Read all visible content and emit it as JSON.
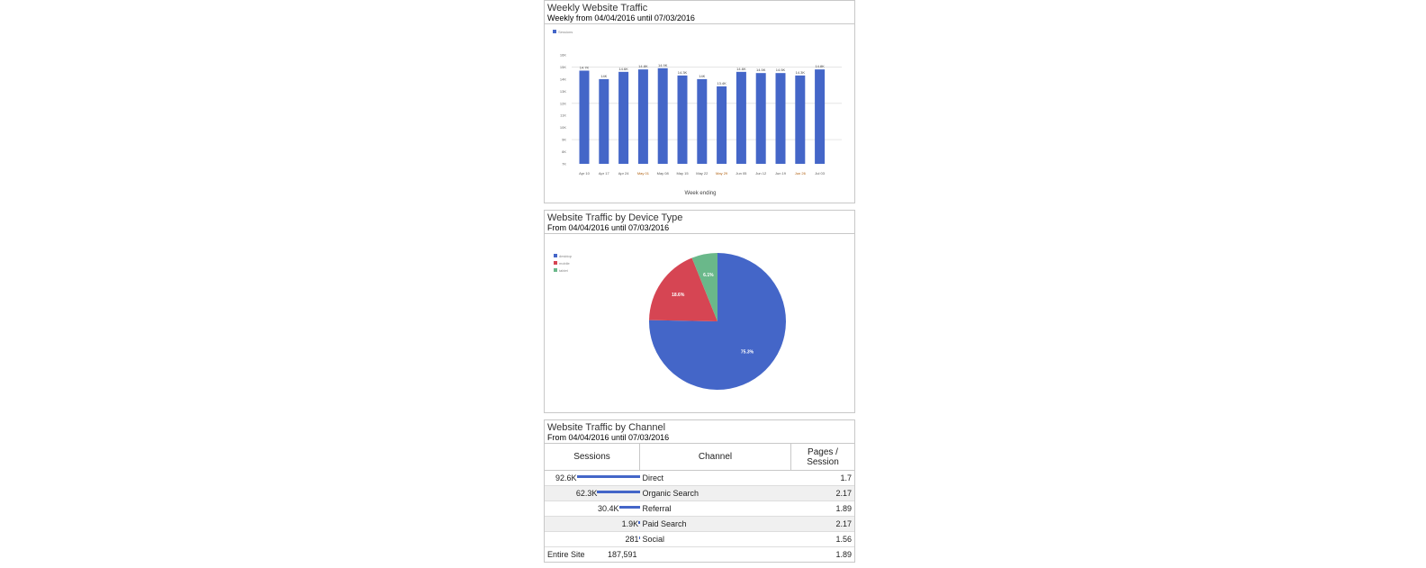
{
  "chart_data": [
    {
      "type": "bar",
      "title": "Weekly Website Traffic",
      "subtitle": "Weekly from 04/04/2016 until 07/03/2016",
      "legend": [
        "Sessions"
      ],
      "legend_position": "top-left",
      "xlabel": "Week ending",
      "ylabel": "",
      "categories": [
        "Apr 10",
        "Apr 17",
        "Apr 24",
        "May 01",
        "May 08",
        "May 15",
        "May 22",
        "May 29",
        "Jun 05",
        "Jun 12",
        "Jun 19",
        "Jun 26",
        "Jul 03"
      ],
      "values": [
        14700,
        14000,
        14600,
        14800,
        14900,
        14300,
        14000,
        13400,
        14600,
        14500,
        14500,
        14300,
        14800
      ],
      "data_labels": [
        "14.7K",
        "14K",
        "14.6K",
        "14.8K",
        "14.9K",
        "14.3K",
        "14K",
        "13.4K",
        "14.6K",
        "14.5K",
        "14.5K",
        "14.3K",
        "14.8K"
      ],
      "yticks": [
        "16K",
        "15K",
        "14K",
        "13K",
        "12K",
        "11K",
        "10K",
        "9K",
        "8K",
        "7K"
      ],
      "ylim": [
        7000,
        16000
      ],
      "color": "#4466c8"
    },
    {
      "type": "pie",
      "title": "Website Traffic by Device Type",
      "subtitle": "From 04/04/2016 until 07/03/2016",
      "legend_position": "top-left",
      "slices": [
        {
          "label": "desktop",
          "value": 75.3,
          "text": "75.3%",
          "color": "#4466c8"
        },
        {
          "label": "mobile",
          "value": 18.6,
          "text": "18.6%",
          "color": "#d64553"
        },
        {
          "label": "tablet",
          "value": 6.1,
          "text": "6.1%",
          "color": "#6ab88a"
        }
      ]
    },
    {
      "type": "table",
      "title": "Website Traffic by Channel",
      "subtitle": "From 04/04/2016 until 07/03/2016",
      "columns": [
        "Sessions",
        "Channel",
        "Pages / Session"
      ],
      "rows": [
        {
          "sessions": "92.6K",
          "value": 92600,
          "channel": "Direct",
          "pps": "1.7"
        },
        {
          "sessions": "62.3K",
          "value": 62300,
          "channel": "Organic Search",
          "pps": "2.17"
        },
        {
          "sessions": "30.4K",
          "value": 30400,
          "channel": "Referral",
          "pps": "1.89"
        },
        {
          "sessions": "1.9K",
          "value": 1900,
          "channel": "Paid Search",
          "pps": "2.17"
        },
        {
          "sessions": "281",
          "value": 281,
          "channel": "Social",
          "pps": "1.56"
        }
      ],
      "footer": {
        "label": "Entire Site",
        "sessions": "187,591",
        "pps": "1.89"
      }
    }
  ]
}
